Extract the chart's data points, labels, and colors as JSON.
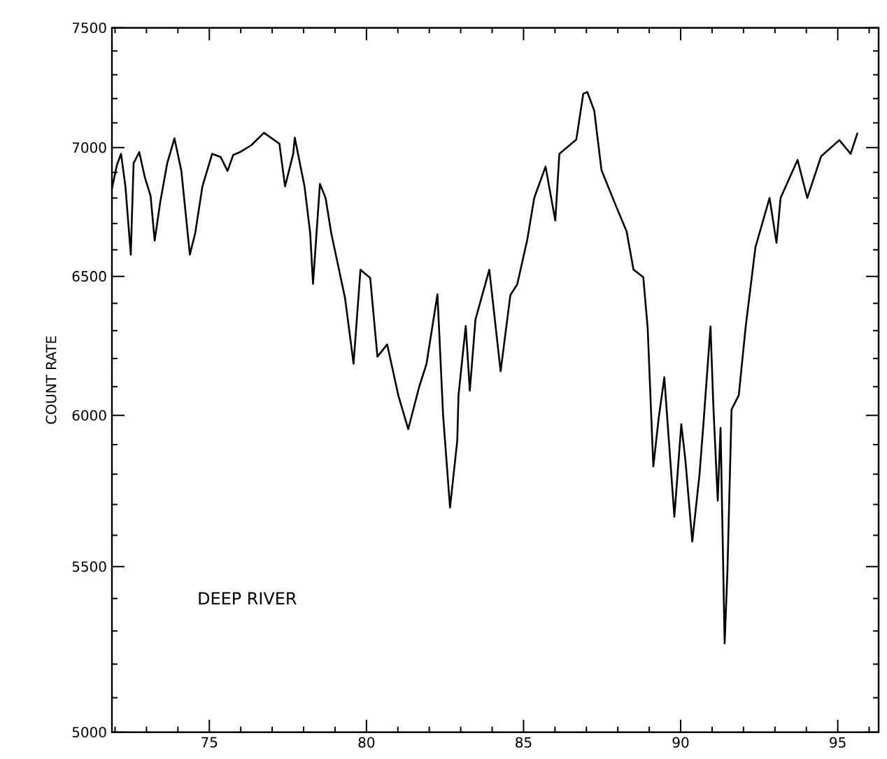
{
  "chart_data": {
    "type": "line",
    "ylabel": "COUNT RATE",
    "annotations": [
      "DEEP RIVER"
    ],
    "log": "y",
    "line_style": "solid",
    "marker": "none",
    "xlim": [
      71.9,
      96.3
    ],
    "ylim": [
      5000,
      7500
    ],
    "xticks": [
      {
        "value": 72,
        "label": null
      },
      {
        "value": 73,
        "label": null
      },
      {
        "value": 74,
        "label": null
      },
      75,
      {
        "value": 76,
        "label": null
      },
      {
        "value": 77,
        "label": null
      },
      {
        "value": 78,
        "label": null
      },
      {
        "value": 79,
        "label": null
      },
      80,
      {
        "value": 81,
        "label": null
      },
      {
        "value": 82,
        "label": null
      },
      {
        "value": 83,
        "label": null
      },
      {
        "value": 84,
        "label": null
      },
      85,
      {
        "value": 86,
        "label": null
      },
      {
        "value": 87,
        "label": null
      },
      {
        "value": 88,
        "label": null
      },
      {
        "value": 89,
        "label": null
      },
      90,
      {
        "value": 91,
        "label": null
      },
      {
        "value": 92,
        "label": null
      },
      {
        "value": 93,
        "label": null
      },
      {
        "value": 94,
        "label": null
      },
      95,
      {
        "value": 96,
        "label": null
      }
    ],
    "yticks": [
      5000,
      {
        "value": 5100,
        "label": null
      },
      {
        "value": 5200,
        "label": null
      },
      {
        "value": 5300,
        "label": null
      },
      {
        "value": 5400,
        "label": null
      },
      5500,
      {
        "value": 5600,
        "label": null
      },
      {
        "value": 5700,
        "label": null
      },
      {
        "value": 5800,
        "label": null
      },
      {
        "value": 5900,
        "label": null
      },
      6000,
      {
        "value": 6100,
        "label": null
      },
      {
        "value": 6200,
        "label": null
      },
      {
        "value": 6300,
        "label": null
      },
      {
        "value": 6400,
        "label": null
      },
      6500,
      {
        "value": 6600,
        "label": null
      },
      {
        "value": 6700,
        "label": null
      },
      {
        "value": 6800,
        "label": null
      },
      {
        "value": 6900,
        "label": null
      },
      7000,
      {
        "value": 7100,
        "label": null
      },
      {
        "value": 7200,
        "label": null
      },
      {
        "value": 7300,
        "label": null
      },
      {
        "value": 7400,
        "label": null
      },
      7500
    ],
    "series": [
      {
        "color": "#000000",
        "x": [
          71.9,
          72.06,
          72.19,
          72.33,
          72.5,
          72.59,
          72.77,
          72.95,
          73.13,
          73.26,
          73.44,
          73.66,
          73.89,
          74.11,
          74.38,
          74.55,
          74.78,
          75.09,
          75.36,
          75.58,
          75.76,
          75.98,
          76.34,
          76.74,
          77.23,
          77.41,
          77.67,
          77.72,
          78.03,
          78.21,
          78.3,
          78.52,
          78.7,
          78.88,
          79.32,
          79.59,
          79.81,
          80.12,
          80.35,
          80.66,
          81.02,
          81.33,
          81.68,
          81.91,
          82.26,
          82.44,
          82.66,
          82.89,
          82.93,
          83.16,
          83.29,
          83.47,
          83.91,
          84.27,
          84.58,
          84.8,
          85.12,
          85.34,
          85.7,
          86.01,
          86.14,
          86.68,
          86.9,
          87.03,
          87.25,
          87.48,
          87.92,
          88.28,
          88.5,
          88.81,
          88.95,
          89.13,
          89.3,
          89.48,
          89.8,
          90.02,
          90.15,
          90.37,
          90.6,
          90.73,
          90.95,
          91.04,
          91.18,
          91.27,
          91.4,
          91.49,
          91.62,
          91.85,
          92.07,
          92.38,
          92.83,
          93.05,
          93.18,
          93.72,
          94.03,
          94.47,
          95.05,
          95.41,
          95.63
        ],
        "values": [
          6836,
          6930,
          6975,
          6845,
          6582,
          6937,
          6982,
          6880,
          6808,
          6635,
          6785,
          6937,
          7037,
          6906,
          6582,
          6663,
          6845,
          6975,
          6962,
          6906,
          6970,
          6982,
          7010,
          7060,
          7015,
          6845,
          6975,
          7040,
          6845,
          6663,
          6472,
          6855,
          6800,
          6663,
          6418,
          6181,
          6525,
          6494,
          6206,
          6250,
          6067,
          5953,
          6100,
          6180,
          6433,
          6000,
          5690,
          5913,
          6070,
          6317,
          6086,
          6340,
          6525,
          6154,
          6430,
          6470,
          6639,
          6800,
          6924,
          6712,
          6975,
          7033,
          7220,
          7227,
          7150,
          6910,
          6775,
          6670,
          6525,
          6497,
          6310,
          5826,
          5990,
          6133,
          5660,
          5970,
          5848,
          5580,
          5800,
          5978,
          6315,
          6035,
          5713,
          5957,
          5262,
          5490,
          6020,
          6070,
          6315,
          6610,
          6800,
          6626,
          6800,
          6950,
          6800,
          6965,
          7030,
          6975,
          7060
        ]
      }
    ]
  }
}
